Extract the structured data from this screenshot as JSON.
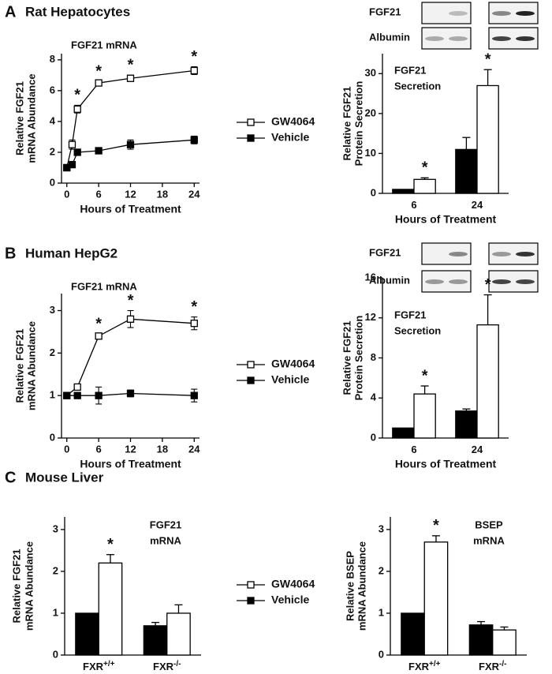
{
  "panels": [
    {
      "label": "A",
      "title": "Rat Hepatocytes"
    },
    {
      "label": "B",
      "title": "Human HepG2"
    },
    {
      "label": "C",
      "title": "Mouse Liver"
    }
  ],
  "chart_data": [
    {
      "type": "line",
      "title": [
        "FGF21 mRNA"
      ],
      "ylabel": [
        "Relative FGF21",
        "mRNA Abundance"
      ],
      "xlabel": "Hours of Treatment",
      "x": [
        0,
        1,
        2,
        6,
        12,
        24
      ],
      "xlim": [
        -1,
        25
      ],
      "xticks": [
        0,
        6,
        12,
        18,
        24
      ],
      "ylim": [
        0,
        8.4
      ],
      "yticks": [
        0,
        2,
        4,
        6,
        8
      ],
      "series": [
        {
          "name": "GW4064",
          "color": "#ffffff",
          "values": [
            1,
            2.5,
            4.8,
            6.5,
            6.8,
            7.3
          ],
          "errors": [
            0.1,
            0.3,
            0.25,
            0.1,
            0.2,
            0.25
          ],
          "significance": [
            null,
            null,
            "*",
            "*",
            "*",
            "*"
          ]
        },
        {
          "name": "Vehicle",
          "color": "#000000",
          "values": [
            1,
            1.2,
            2,
            2.1,
            2.5,
            2.8
          ],
          "errors": [
            0.1,
            0.1,
            0.1,
            0.15,
            0.3,
            0.25
          ]
        }
      ]
    },
    {
      "type": "bar",
      "title": [
        "FGF21",
        "Secretion"
      ],
      "ylabel": [
        "Relative FGF21",
        "Protein Secretion"
      ],
      "xlabel": "Hours of Treatment",
      "blot_labels": [
        "FGF21",
        "Albumin"
      ],
      "categories": [
        "6",
        "24"
      ],
      "ylim": [
        0,
        35
      ],
      "yticks": [
        0,
        10,
        20,
        30
      ],
      "series": [
        {
          "color": "#000000",
          "values": [
            1,
            11
          ],
          "errors": [
            null,
            3
          ]
        },
        {
          "color": "#ffffff",
          "values": [
            3.5,
            27
          ],
          "errors": [
            0.4,
            4
          ],
          "significance": [
            "*",
            "*"
          ]
        }
      ]
    },
    {
      "type": "line",
      "title": [
        "FGF21 mRNA"
      ],
      "ylabel": [
        "Relative FGF21",
        "mRNA Abundance"
      ],
      "xlabel": "Hours of Treatment",
      "x": [
        0,
        2,
        6,
        12,
        24
      ],
      "xlim": [
        -1,
        25
      ],
      "xticks": [
        0,
        6,
        12,
        18,
        24
      ],
      "ylim": [
        0,
        3.4
      ],
      "yticks": [
        0,
        1,
        2,
        3
      ],
      "series": [
        {
          "name": "GW4064",
          "color": "#ffffff",
          "values": [
            1,
            1.2,
            2.4,
            2.8,
            2.7
          ],
          "errors": [
            0.03,
            0.03,
            0.05,
            0.2,
            0.15
          ],
          "significance": [
            null,
            null,
            "*",
            "*",
            "*"
          ]
        },
        {
          "name": "Vehicle",
          "color": "#000000",
          "values": [
            1,
            1,
            1,
            1.05,
            1
          ],
          "errors": [
            0.03,
            0.05,
            0.2,
            0.08,
            0.15
          ]
        }
      ]
    },
    {
      "type": "bar",
      "title": [
        "FGF21",
        "Secretion"
      ],
      "ylabel": [
        "Relative FGF21",
        "Protein Secretion"
      ],
      "xlabel": "Hours of Treatment",
      "blot_labels": [
        "FGF21",
        "Albumin"
      ],
      "categories": [
        "6",
        "24"
      ],
      "ylim": [
        0,
        16
      ],
      "yticks": [
        0,
        4,
        8,
        12,
        16
      ],
      "series": [
        {
          "color": "#000000",
          "values": [
            1,
            2.7
          ],
          "errors": [
            null,
            0.2
          ]
        },
        {
          "color": "#ffffff",
          "values": [
            4.4,
            11.3
          ],
          "errors": [
            0.8,
            3
          ],
          "significance": [
            "*",
            "*"
          ]
        }
      ]
    },
    {
      "type": "bar",
      "title": [
        "FGF21",
        "mRNA"
      ],
      "ylabel": [
        "Relative FGF21",
        "mRNA Abundance"
      ],
      "categories": [
        "FXR",
        "FXR"
      ],
      "category_superscripts": [
        "+/+",
        "-/-"
      ],
      "ylim": [
        0,
        3.3
      ],
      "yticks": [
        0,
        1,
        2,
        3
      ],
      "series": [
        {
          "name": "Vehicle",
          "color": "#000000",
          "values": [
            1,
            0.7
          ],
          "errors": [
            null,
            0.08
          ]
        },
        {
          "name": "GW4064",
          "color": "#ffffff",
          "values": [
            2.2,
            1.0
          ],
          "errors": [
            0.2,
            0.2
          ],
          "significance": [
            "*",
            null
          ]
        }
      ]
    },
    {
      "type": "bar",
      "title": [
        "BSEP",
        "mRNA"
      ],
      "ylabel": [
        "Relative BSEP",
        "mRNA Abundance"
      ],
      "categories": [
        "FXR",
        "FXR"
      ],
      "category_superscripts": [
        "+/+",
        "-/-"
      ],
      "ylim": [
        0,
        3.3
      ],
      "yticks": [
        0,
        1,
        2,
        3
      ],
      "series": [
        {
          "color": "#000000",
          "values": [
            1,
            0.72
          ],
          "errors": [
            null,
            0.08
          ]
        },
        {
          "color": "#ffffff",
          "values": [
            2.7,
            0.6
          ],
          "errors": [
            0.15,
            0.07
          ],
          "significance": [
            "*",
            null
          ]
        }
      ]
    }
  ]
}
